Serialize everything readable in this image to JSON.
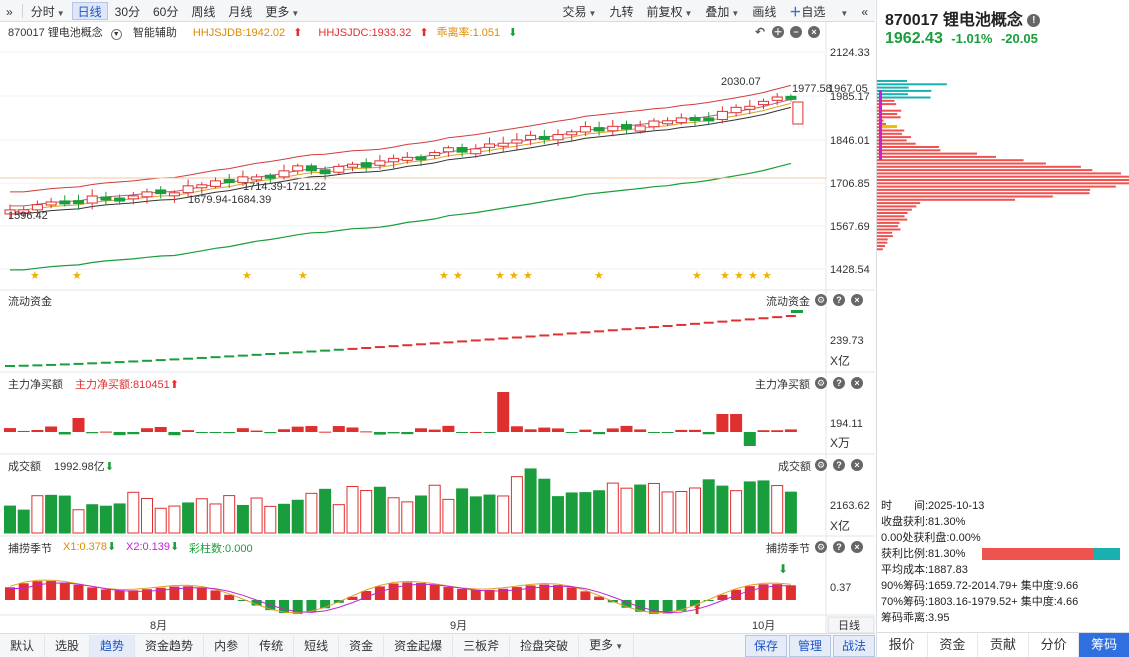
{
  "toolbar": {
    "left": [
      "分时",
      "日线",
      "30分",
      "60分",
      "周线",
      "月线",
      "更多"
    ],
    "right": [
      "交易",
      "九转",
      "前复权",
      "叠加",
      "画线",
      "自选"
    ]
  },
  "info": {
    "code_name": "870017 锂电池概念",
    "assist": "智能辅助",
    "hhjsjdb": "HHJSJDB:1942.02",
    "hhjsjdc": "HHJSJDC:1933.32",
    "deviation": "乖离率:1.051"
  },
  "price_chart": {
    "y_ticks": [
      "2124.33",
      "1985.17",
      "1846.01",
      "1706.85",
      "1567.69",
      "1428.54"
    ],
    "annotations": [
      "2030.07",
      "1977.58",
      "1967.05",
      "1714.39-1721.22",
      "1679.94-1684.39",
      "1596.42"
    ]
  },
  "panels": {
    "flow": {
      "label": "流动资金",
      "label_r": "流动资金",
      "tick": "239.73",
      "unit": "X亿"
    },
    "main": {
      "label": "主力净买额",
      "value": "主力净买额:810451",
      "label_r": "主力净买额",
      "tick": "194.11",
      "unit": "X万"
    },
    "volume": {
      "label": "成交额",
      "value": "1992.98亿",
      "label_r": "成交额",
      "tick": "2163.62",
      "unit": "X亿"
    },
    "season": {
      "label": "捕捞季节",
      "x1": "X1:0.378",
      "x2": "X2:0.139",
      "bar": "彩柱数:0.000",
      "label_r": "捕捞季节",
      "tick": "0.37"
    }
  },
  "x_axis": {
    "aug": "8月",
    "sep": "9月",
    "oct": "10月",
    "period": "日线"
  },
  "bottom": {
    "tabs": [
      "默认",
      "选股",
      "趋势",
      "资金趋势",
      "内参",
      "传统",
      "短线",
      "资金",
      "资金起爆",
      "三板斧",
      "捡盘突破",
      "更多"
    ],
    "actions": [
      "保存",
      "管理",
      "战法"
    ]
  },
  "right": {
    "title": "870017 锂电池概念",
    "price": "1962.43",
    "change_pct": "-1.01%",
    "change": "-20.05",
    "stats": {
      "time": "时　　间:2025-10-13",
      "close_profit": "收盘获利:81.30%",
      "zero_trap": "0.00处获利盘:0.00%",
      "profit_ratio": "获利比例:81.30%",
      "avg_cost": "平均成本:1887.83",
      "chip90": "90%筹码:1659.72-2014.79+ 集中度:9.66",
      "chip70": "70%筹码:1803.16-1979.52+ 集中度:4.66",
      "chip_dev": "筹码乖离:3.95"
    },
    "tabs": [
      "报价",
      "资金",
      "贡献",
      "分价",
      "筹码"
    ]
  },
  "colors": {
    "up": "#e02f2f",
    "down": "#1a9d3c",
    "accent": "#2f6fe0",
    "ma_orange": "#e0a020"
  }
}
